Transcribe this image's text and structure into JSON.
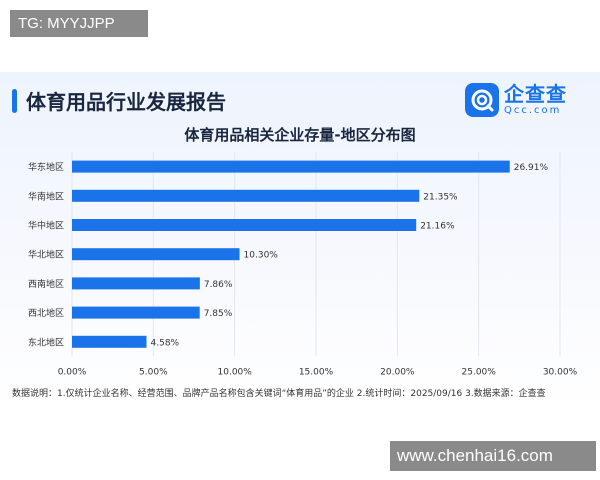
{
  "watermarks": {
    "top": "TG: MYYJJPP",
    "bottom": "www.chenhai16.com"
  },
  "report": {
    "title": "体育用品行业发展报告"
  },
  "logo": {
    "cn": "企查查",
    "en": "Qcc.com",
    "icon": "qcc-logo-icon"
  },
  "colors": {
    "bar": "#1a73e8",
    "title_bar": "#1a73e8",
    "grid": "#e3e7ee"
  },
  "footnote": "数据说明：1.仅统计企业名称、经营范围、品牌产品名称包含关键词“体育用品”的企业  2.统计时间：2025/09/16  3.数据来源：企查查",
  "chart_data": {
    "type": "bar",
    "orientation": "horizontal",
    "title": "体育用品相关企业存量-地区分布图",
    "categories": [
      "华东地区",
      "华南地区",
      "华中地区",
      "华北地区",
      "西南地区",
      "西北地区",
      "东北地区"
    ],
    "values": [
      26.91,
      21.35,
      21.16,
      10.3,
      7.86,
      7.85,
      4.58
    ],
    "value_labels": [
      "26.91%",
      "21.35%",
      "21.16%",
      "10.30%",
      "7.86%",
      "7.85%",
      "4.58%"
    ],
    "xlim": [
      0,
      30
    ],
    "xticks": [
      0,
      5,
      10,
      15,
      20,
      25,
      30
    ],
    "xtick_labels": [
      "0.00%",
      "5.00%",
      "10.00%",
      "15.00%",
      "20.00%",
      "25.00%",
      "30.00%"
    ],
    "grid": true,
    "legend": "none"
  }
}
